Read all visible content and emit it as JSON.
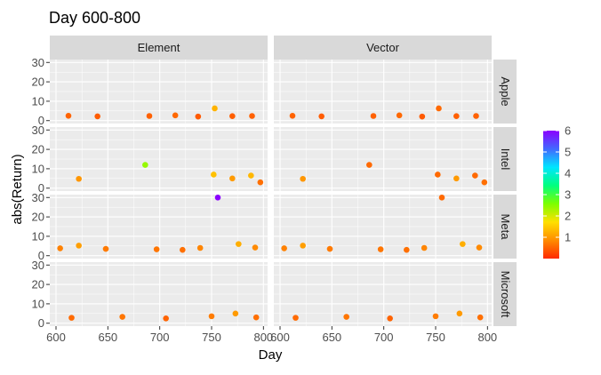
{
  "chart_data": {
    "type": "scatter",
    "title": "Day 600-800",
    "xlabel": "Day",
    "ylabel": "abs(Return)",
    "xlim": [
      594,
      804
    ],
    "ylim": [
      -1.5,
      31.5
    ],
    "x_ticks": [
      600,
      650,
      700,
      750,
      800
    ],
    "y_ticks": [
      0,
      10,
      20,
      30
    ],
    "col_facets": [
      "Element",
      "Vector"
    ],
    "row_facets": [
      "Apple",
      "Intel",
      "Meta",
      "Microsoft"
    ],
    "grid": true,
    "legend": {
      "placement": "right",
      "type": "colorbar",
      "ticks": [
        1,
        2,
        3,
        4,
        5,
        6
      ],
      "range": [
        0,
        6
      ],
      "colors": [
        "#FF2A00",
        "#FF8C00",
        "#FFE000",
        "#7CFF00",
        "#00FF7F",
        "#00E5FF",
        "#4169FF",
        "#8A00FF"
      ]
    },
    "panel_colors": {
      "background": "#EBEBEB",
      "grid_major": "#FFFFFF",
      "strip": "#D9D9D9"
    },
    "series": [
      {
        "facet": "Apple",
        "points": [
          {
            "x": 612,
            "y": 2.5
          },
          {
            "x": 640,
            "y": 2.2
          },
          {
            "x": 690,
            "y": 2.4
          },
          {
            "x": 715,
            "y": 2.7
          },
          {
            "x": 737,
            "y": 2.1
          },
          {
            "x": 753,
            "y": 6.3
          },
          {
            "x": 770,
            "y": 2.3
          },
          {
            "x": 789,
            "y": 2.4
          }
        ]
      },
      {
        "facet": "Intel",
        "points": [
          {
            "x": 622,
            "y": 4.8
          },
          {
            "x": 686,
            "y": 12.0
          },
          {
            "x": 752,
            "y": 7.0
          },
          {
            "x": 770,
            "y": 5.0
          },
          {
            "x": 788,
            "y": 6.5
          },
          {
            "x": 797,
            "y": 3.0
          }
        ]
      },
      {
        "facet": "Meta",
        "points": [
          {
            "x": 604,
            "y": 3.8
          },
          {
            "x": 622,
            "y": 5.2
          },
          {
            "x": 648,
            "y": 3.5
          },
          {
            "x": 697,
            "y": 3.3
          },
          {
            "x": 722,
            "y": 3.0
          },
          {
            "x": 739,
            "y": 4.0
          },
          {
            "x": 756,
            "y": 30.0
          },
          {
            "x": 776,
            "y": 6.0
          },
          {
            "x": 792,
            "y": 4.2
          }
        ]
      },
      {
        "facet": "Microsoft",
        "points": [
          {
            "x": 615,
            "y": 2.8
          },
          {
            "x": 664,
            "y": 3.3
          },
          {
            "x": 706,
            "y": 2.5
          },
          {
            "x": 750,
            "y": 3.6
          },
          {
            "x": 773,
            "y": 5.0
          },
          {
            "x": 793,
            "y": 3.0
          }
        ]
      }
    ]
  }
}
